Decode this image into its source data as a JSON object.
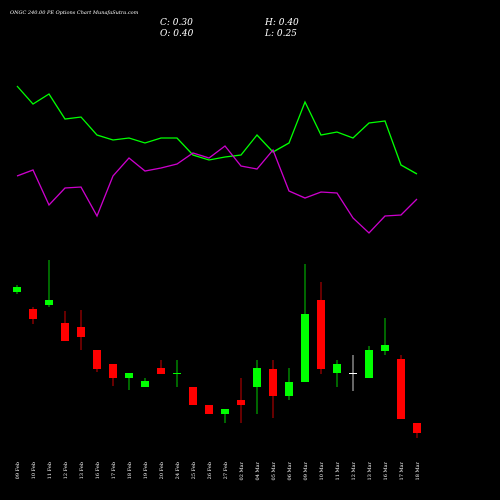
{
  "chart_data": {
    "type": "candlestick",
    "title": "ONGC 240.00 PE Options Chart MunafaSutra.com",
    "header": [
      "C: 0.30",
      "H: 0.40",
      "O: 0.40",
      "L: 0.25"
    ],
    "categories": [
      "09 Feb",
      "10 Feb",
      "11 Feb",
      "12 Feb",
      "13 Feb",
      "16 Feb",
      "17 Feb",
      "18 Feb",
      "19 Feb",
      "20 Feb",
      "24 Feb",
      "25 Feb",
      "26 Feb",
      "27 Feb",
      "02 Mar",
      "04 Mar",
      "05 Mar",
      "06 Mar",
      "09 Mar",
      "10 Mar",
      "11 Mar",
      "12 Mar",
      "13 Mar",
      "16 Mar",
      "17 Mar",
      "18 Mar"
    ],
    "open": [
      1.71,
      1.54,
      1.58,
      1.4,
      1.36,
      1.13,
      0.99,
      0.85,
      0.76,
      0.95,
      0.89,
      0.76,
      0.58,
      0.49,
      0.63,
      0.76,
      0.94,
      0.67,
      0.81,
      1.63,
      0.9,
      0.9,
      0.85,
      1.12,
      1.04,
      0.4
    ],
    "close": [
      1.76,
      1.44,
      1.63,
      1.22,
      1.26,
      0.94,
      0.85,
      0.9,
      0.82,
      0.89,
      0.9,
      0.58,
      0.49,
      0.54,
      0.58,
      0.95,
      0.67,
      0.81,
      1.49,
      0.94,
      0.99,
      0.9,
      1.13,
      1.18,
      0.44,
      0.3
    ],
    "high": [
      1.78,
      1.56,
      2.03,
      1.52,
      1.53,
      1.13,
      0.99,
      0.9,
      0.85,
      1.03,
      1.03,
      0.76,
      0.58,
      0.54,
      0.85,
      1.03,
      1.03,
      0.95,
      1.99,
      1.81,
      1.03,
      1.08,
      1.17,
      1.45,
      1.08,
      0.4
    ],
    "low": [
      1.69,
      1.39,
      1.56,
      1.22,
      1.13,
      0.91,
      0.77,
      0.73,
      0.76,
      0.89,
      0.76,
      0.58,
      0.49,
      0.4,
      0.4,
      0.49,
      0.45,
      0.63,
      0.81,
      0.89,
      0.76,
      0.72,
      0.85,
      1.08,
      0.44,
      0.25
    ],
    "up_color": "#00ff00",
    "down_color": "#ff0000",
    "flat_color": "#ffffff",
    "lines": [
      {
        "color": "#00ff00",
        "values": [
          214,
          196,
          206,
          181,
          183,
          165,
          160,
          162,
          157,
          162,
          162,
          145,
          140,
          143,
          145,
          165,
          148,
          157,
          198,
          165,
          168,
          162,
          177,
          179,
          135,
          126
        ]
      },
      {
        "color": "#cc00cc",
        "values": [
          124,
          130,
          95,
          112,
          113,
          84,
          124,
          142,
          129,
          132,
          136,
          147,
          142,
          154,
          134,
          131,
          150,
          109,
          102,
          108,
          107,
          82,
          67,
          84,
          85,
          101
        ]
      }
    ]
  }
}
